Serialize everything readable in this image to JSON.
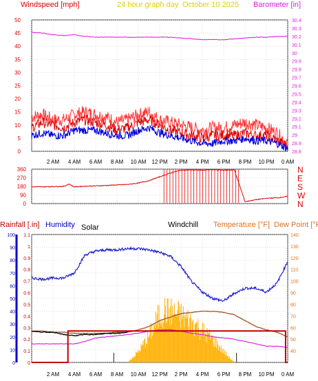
{
  "header": {
    "title": "24 hour graph day",
    "date": "October 10 2025",
    "left_label": "Windspeed [mph]",
    "right_label": "Barometer [in]"
  },
  "colors": {
    "wind": "#e00000",
    "gust": "#ff3030",
    "wind_avg": "#0000e0",
    "barometer": "#e020e0",
    "direction": "#e00000",
    "humidity": "#2020d0",
    "rain": "#c00000",
    "temperature": "#a85a30",
    "dewpoint": "#e020e0",
    "windchill": "#000000",
    "solar": "#ffb000",
    "rain_axis": "#c00000",
    "humidity_axis": "#0000c0",
    "temperature_axis": "#e07020",
    "title": "#e0d000"
  },
  "chart_data": [
    {
      "type": "line",
      "title": "24 hour graph day  October 10 2025",
      "x": {
        "label": "",
        "range_hours": [
          0,
          24
        ],
        "ticks": [
          "2 AM",
          "4 AM",
          "6 AM",
          "8 AM",
          "10 AM",
          "12 PM",
          "2 PM",
          "4 PM",
          "6 PM",
          "8 PM",
          "10 PM",
          "0 AM"
        ]
      },
      "y_left": {
        "label": "Windspeed [mph]",
        "range": [
          0,
          50
        ],
        "ticks": [
          "0",
          "5",
          "10",
          "15",
          "20",
          "25",
          "30",
          "35",
          "40",
          "45",
          "50"
        ]
      },
      "y_right": {
        "label": "Barometer [in]",
        "range": [
          28.8,
          30.4
        ],
        "ticks": [
          "28.8",
          "28.9",
          "29",
          "29.1",
          "29.2",
          "29.3",
          "29.4",
          "29.5",
          "29.6",
          "29.7",
          "29.8",
          "29.9",
          "30",
          "30.1",
          "30.2",
          "30.3",
          "30.4"
        ]
      },
      "grid": true,
      "series": [
        {
          "name": "Windspeed [mph]",
          "axis": "left",
          "hours": [
            0,
            1,
            2,
            3,
            4,
            5,
            6,
            7,
            8,
            9,
            10,
            11,
            12,
            13,
            14,
            15,
            16,
            17,
            18,
            19,
            20,
            21,
            22,
            23,
            24
          ],
          "values": [
            9,
            11,
            10,
            9,
            11,
            12,
            11,
            10,
            8,
            9,
            11,
            12,
            10,
            8,
            7,
            6,
            5,
            6,
            6,
            6,
            7,
            6,
            6,
            4,
            2
          ]
        },
        {
          "name": "Gust",
          "axis": "left",
          "hours": [
            0,
            1,
            2,
            3,
            4,
            5,
            6,
            7,
            8,
            9,
            10,
            11,
            12,
            13,
            14,
            15,
            16,
            17,
            18,
            19,
            20,
            21,
            22,
            23,
            24
          ],
          "values": [
            13,
            14,
            12,
            12,
            14,
            15,
            14,
            13,
            11,
            12,
            14,
            15,
            12,
            11,
            10,
            9,
            8,
            9,
            9,
            10,
            11,
            10,
            9,
            7,
            3
          ]
        },
        {
          "name": "Average",
          "axis": "left",
          "hours": [
            0,
            1,
            2,
            3,
            4,
            5,
            6,
            7,
            8,
            9,
            10,
            11,
            12,
            13,
            14,
            15,
            16,
            17,
            18,
            19,
            20,
            21,
            22,
            23,
            24
          ],
          "values": [
            6,
            7,
            6,
            6,
            8,
            8,
            8,
            7,
            6,
            6,
            8,
            9,
            7,
            6,
            5,
            4,
            3,
            3,
            4,
            4,
            5,
            4,
            4,
            3,
            1
          ]
        },
        {
          "name": "Barometer [in]",
          "axis": "right",
          "hours": [
            0,
            1,
            2,
            3,
            4,
            5,
            6,
            7,
            8,
            9,
            10,
            11,
            12,
            13,
            14,
            15,
            16,
            17,
            18,
            19,
            20,
            21,
            22,
            23,
            24
          ],
          "values": [
            30.25,
            30.24,
            30.22,
            30.21,
            30.22,
            30.2,
            30.19,
            30.19,
            30.19,
            30.19,
            30.19,
            30.19,
            30.19,
            30.19,
            30.18,
            30.17,
            30.16,
            30.16,
            30.16,
            30.17,
            30.18,
            30.19,
            30.19,
            30.2,
            30.2
          ]
        }
      ]
    },
    {
      "type": "line",
      "x": {
        "range_hours": [
          0,
          24
        ]
      },
      "y_left": {
        "range": [
          0,
          360
        ],
        "ticks": [
          "0",
          "90",
          "180",
          "270",
          "360"
        ]
      },
      "y_right": {
        "ticks": [
          "N",
          "W",
          "S",
          "E",
          "N"
        ]
      },
      "grid": true,
      "series": [
        {
          "name": "Wind direction",
          "hours": [
            0,
            1,
            2,
            3,
            3.5,
            4,
            5,
            6,
            7,
            8,
            9,
            10,
            11,
            12,
            13,
            14,
            15,
            16,
            17,
            18,
            19,
            20,
            21,
            22,
            23,
            24
          ],
          "values": [
            175,
            175,
            178,
            180,
            205,
            175,
            182,
            185,
            190,
            195,
            200,
            215,
            240,
            280,
            320,
            350,
            352,
            350,
            355,
            350,
            352,
            20,
            40,
            55,
            60,
            75
          ]
        }
      ]
    },
    {
      "type": "line",
      "x": {
        "range_hours": [
          0,
          24
        ],
        "ticks": [
          "2 AM",
          "4 AM",
          "6 AM",
          "8 AM",
          "10 AM",
          "12 PM",
          "2 PM",
          "4 PM",
          "6 PM",
          "8 PM",
          "10 PM",
          "0 AM"
        ]
      },
      "y_left": {
        "label": "Rainfall [.in]",
        "range": [
          0,
          1.1
        ],
        "ticks": [
          "0",
          "0.1",
          "0.2",
          "0.3",
          "0.4",
          "0.5",
          "0.6",
          "0.7",
          "0.8",
          "0.9",
          "1",
          "1.1"
        ]
      },
      "y_humidity": {
        "label": "Humidity",
        "range": [
          0,
          100
        ],
        "ticks": [
          "0",
          "10",
          "20",
          "30",
          "40",
          "50",
          "60",
          "70",
          "80",
          "90",
          "100"
        ]
      },
      "y_right": {
        "label": "Temperature [°F] Dew Point [°F]",
        "range": [
          30,
          140
        ],
        "ticks": [
          "40",
          "50",
          "60",
          "70",
          "80",
          "90",
          "100",
          "110",
          "120",
          "130",
          "140"
        ]
      },
      "legend": [
        "Rainfall [.in]",
        "Humidity",
        "Solar",
        "Windchill",
        "Temperature [°F]",
        "Dew Point [°F]"
      ],
      "series": [
        {
          "name": "Humidity",
          "hours": [
            0,
            1,
            2,
            3,
            4,
            5,
            6,
            7,
            8,
            9,
            10,
            11,
            12,
            13,
            14,
            15,
            16,
            17,
            18,
            19,
            20,
            21,
            22,
            23,
            24
          ],
          "values": [
            66,
            65,
            66,
            66,
            70,
            84,
            87,
            88,
            88,
            89,
            89,
            88,
            86,
            83,
            75,
            63,
            55,
            50,
            48,
            54,
            58,
            58,
            55,
            62,
            79
          ]
        },
        {
          "name": "Rainfall [.in]",
          "hours": [
            0,
            3.4,
            3.4,
            23.8,
            23.8,
            24
          ],
          "values": [
            0,
            0,
            0.27,
            0.27,
            0,
            0
          ]
        },
        {
          "name": "Temperature [°F]",
          "hours": [
            0,
            1,
            2,
            3,
            4,
            5,
            6,
            7,
            8,
            9,
            10,
            11,
            12,
            13,
            14,
            15,
            16,
            17,
            18,
            19,
            20,
            21,
            22,
            23,
            24
          ],
          "values": [
            57,
            57,
            56,
            56,
            55,
            55,
            55,
            55,
            56,
            56,
            58,
            61,
            66,
            69,
            72,
            73,
            74,
            74,
            73,
            71,
            66,
            61,
            58,
            56,
            52
          ]
        },
        {
          "name": "Dew Point [°F]",
          "hours": [
            0,
            1,
            2,
            3,
            4,
            5,
            6,
            7,
            8,
            9,
            10,
            11,
            12,
            13,
            14,
            15,
            16,
            17,
            18,
            19,
            20,
            21,
            22,
            23,
            24
          ],
          "values": [
            46,
            46,
            46,
            46,
            46,
            48,
            51,
            52,
            53,
            54,
            55,
            57,
            58,
            58,
            57,
            55,
            54,
            52,
            51,
            50,
            48,
            46,
            44,
            44,
            43
          ]
        },
        {
          "name": "Windchill",
          "hours": [
            0,
            1,
            2,
            3,
            4,
            5,
            6,
            7,
            8,
            9
          ],
          "values": [
            57,
            56,
            56,
            54,
            53,
            54,
            54,
            55,
            55,
            56
          ]
        },
        {
          "name": "Solar",
          "hours": [
            9,
            10,
            11,
            12,
            12.5,
            13,
            14,
            15,
            16,
            17,
            18,
            18.5,
            19
          ],
          "values": [
            0,
            0.1,
            0.25,
            0.45,
            0.5,
            0.48,
            0.44,
            0.38,
            0.3,
            0.22,
            0.1,
            0.05,
            0
          ]
        }
      ]
    }
  ]
}
